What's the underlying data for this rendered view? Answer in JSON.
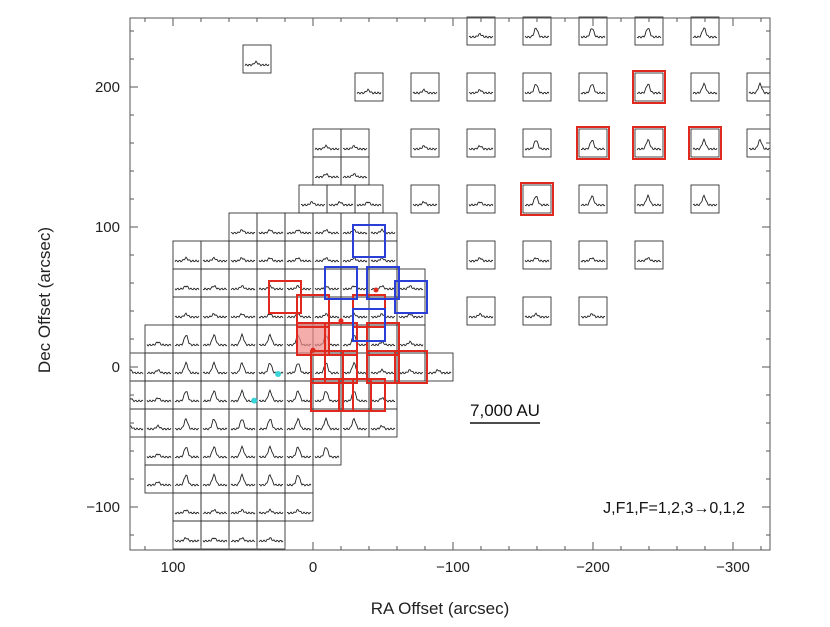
{
  "chart_data": {
    "type": "scatter",
    "xlabel": "RA Offset (arcsec)",
    "ylabel": "Dec Offset (arcsec)",
    "xlim": [
      130,
      -330
    ],
    "ylim": [
      -130,
      245
    ],
    "x_ticks": [
      100,
      0,
      -100,
      -200,
      -300
    ],
    "x_tick_labels": [
      "100",
      "0",
      "−100",
      "−200",
      "−300"
    ],
    "y_ticks": [
      -100,
      0,
      100,
      200
    ],
    "y_tick_labels": [
      "−100",
      "0",
      "100",
      "200"
    ],
    "grid": false,
    "scale_bar_label": "7,000 AU",
    "transition_label": "J,F1,F=1,2,3→0,1,2",
    "colors": {
      "red": "#e0291e",
      "blue": "#2a3fd8",
      "cyan": "#38d4d8",
      "red_fill": "#f08a86"
    },
    "red_boxes": [
      [
        20,
        50
      ],
      [
        -40,
        40
      ],
      [
        0,
        40
      ],
      [
        -20,
        20
      ],
      [
        -50,
        20
      ],
      [
        -10,
        0
      ],
      [
        -70,
        0
      ],
      [
        -40,
        -20
      ],
      [
        -10,
        -20
      ],
      [
        0,
        20
      ],
      [
        -20,
        0
      ],
      [
        -50,
        0
      ],
      [
        -30,
        -20
      ],
      [
        -240,
        200
      ],
      [
        -200,
        160
      ],
      [
        -240,
        160
      ],
      [
        -280,
        160
      ],
      [
        -160,
        120
      ]
    ],
    "blue_boxes": [
      [
        -40,
        90
      ],
      [
        -20,
        60
      ],
      [
        -50,
        60
      ],
      [
        -40,
        30
      ],
      [
        -70,
        50
      ]
    ],
    "filled_red_box": [
      0,
      20
    ],
    "red_dots": [
      [
        -45,
        55
      ],
      [
        -20,
        33
      ],
      [
        0,
        12
      ]
    ],
    "cyan_dots": [
      [
        25,
        -5
      ],
      [
        42,
        -24
      ]
    ]
  }
}
